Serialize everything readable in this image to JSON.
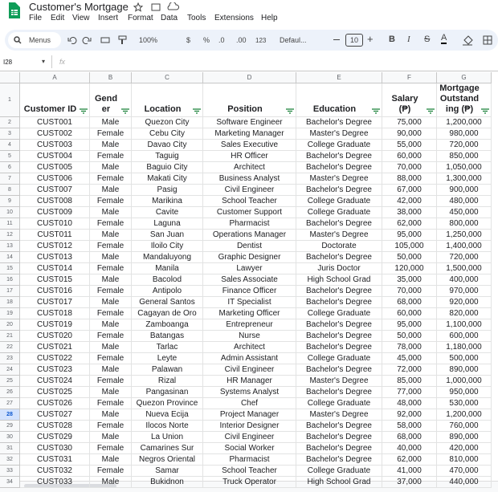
{
  "header": {
    "title": "Customer's Mortgage",
    "menus": [
      "File",
      "Edit",
      "View",
      "Insert",
      "Format",
      "Data",
      "Tools",
      "Extensions",
      "Help"
    ]
  },
  "toolbar": {
    "search": "Menus",
    "zoom": "100%",
    "currency": "$",
    "percent": "%",
    "decimal_less": ".0",
    "decimal_more": ".00",
    "number_format": "123",
    "font": "Defaul...",
    "font_size": "10",
    "bold": "B",
    "italic": "I",
    "text_color": "A"
  },
  "formula_bar": {
    "cell": "I28",
    "fx": "fx"
  },
  "table": {
    "column_letters": [
      "A",
      "B",
      "C",
      "D",
      "E",
      "F",
      "G"
    ],
    "row_numbers": [
      "1",
      "2",
      "3",
      "4",
      "5",
      "6",
      "7",
      "8",
      "9",
      "10",
      "11",
      "12",
      "13",
      "14",
      "15",
      "16",
      "17",
      "18",
      "19",
      "20",
      "21",
      "22",
      "23",
      "24",
      "25",
      "26",
      "27",
      "28",
      "29",
      "30",
      "31",
      "32",
      "33",
      "34"
    ],
    "selected_row": "28",
    "columns": [
      "Customer ID",
      "Gender",
      "Location",
      "Position",
      "Education",
      "Salary (₱)",
      "Mortgage Outstanding (₱)"
    ],
    "rows": [
      [
        "CUST001",
        "Male",
        "Quezon City",
        "Software Engineer",
        "Bachelor's Degree",
        "75,000",
        "1,200,000"
      ],
      [
        "CUST002",
        "Female",
        "Cebu City",
        "Marketing Manager",
        "Master's Degree",
        "90,000",
        "980,000"
      ],
      [
        "CUST003",
        "Male",
        "Davao City",
        "Sales Executive",
        "College Graduate",
        "55,000",
        "720,000"
      ],
      [
        "CUST004",
        "Female",
        "Taguig",
        "HR Officer",
        "Bachelor's Degree",
        "60,000",
        "850,000"
      ],
      [
        "CUST005",
        "Male",
        "Baguio City",
        "Architect",
        "Bachelor's Degree",
        "70,000",
        "1,050,000"
      ],
      [
        "CUST006",
        "Female",
        "Makati City",
        "Business Analyst",
        "Master's Degree",
        "88,000",
        "1,300,000"
      ],
      [
        "CUST007",
        "Male",
        "Pasig",
        "Civil Engineer",
        "Bachelor's Degree",
        "67,000",
        "900,000"
      ],
      [
        "CUST008",
        "Female",
        "Marikina",
        "School Teacher",
        "College Graduate",
        "42,000",
        "480,000"
      ],
      [
        "CUST009",
        "Male",
        "Cavite",
        "Customer Support",
        "College Graduate",
        "38,000",
        "450,000"
      ],
      [
        "CUST010",
        "Female",
        "Laguna",
        "Pharmacist",
        "Bachelor's Degree",
        "62,000",
        "800,000"
      ],
      [
        "CUST011",
        "Male",
        "San Juan",
        "Operations Manager",
        "Master's Degree",
        "95,000",
        "1,250,000"
      ],
      [
        "CUST012",
        "Female",
        "Iloilo City",
        "Dentist",
        "Doctorate",
        "105,000",
        "1,400,000"
      ],
      [
        "CUST013",
        "Male",
        "Mandaluyong",
        "Graphic Designer",
        "Bachelor's Degree",
        "50,000",
        "720,000"
      ],
      [
        "CUST014",
        "Female",
        "Manila",
        "Lawyer",
        "Juris Doctor",
        "120,000",
        "1,500,000"
      ],
      [
        "CUST015",
        "Male",
        "Bacolod",
        "Sales Associate",
        "High School Grad",
        "35,000",
        "400,000"
      ],
      [
        "CUST016",
        "Female",
        "Antipolo",
        "Finance Officer",
        "Bachelor's Degree",
        "70,000",
        "970,000"
      ],
      [
        "CUST017",
        "Male",
        "General Santos",
        "IT Specialist",
        "Bachelor's Degree",
        "68,000",
        "920,000"
      ],
      [
        "CUST018",
        "Female",
        "Cagayan de Oro",
        "Marketing Officer",
        "College Graduate",
        "60,000",
        "820,000"
      ],
      [
        "CUST019",
        "Male",
        "Zamboanga",
        "Entrepreneur",
        "Bachelor's Degree",
        "95,000",
        "1,100,000"
      ],
      [
        "CUST020",
        "Female",
        "Batangas",
        "Nurse",
        "Bachelor's Degree",
        "50,000",
        "600,000"
      ],
      [
        "CUST021",
        "Male",
        "Tarlac",
        "Architect",
        "Bachelor's Degree",
        "78,000",
        "1,180,000"
      ],
      [
        "CUST022",
        "Female",
        "Leyte",
        "Admin Assistant",
        "College Graduate",
        "45,000",
        "500,000"
      ],
      [
        "CUST023",
        "Male",
        "Palawan",
        "Civil Engineer",
        "Bachelor's Degree",
        "72,000",
        "890,000"
      ],
      [
        "CUST024",
        "Female",
        "Rizal",
        "HR Manager",
        "Master's Degree",
        "85,000",
        "1,000,000"
      ],
      [
        "CUST025",
        "Male",
        "Pangasinan",
        "Systems Analyst",
        "Bachelor's Degree",
        "77,000",
        "950,000"
      ],
      [
        "CUST026",
        "Female",
        "Quezon Province",
        "Chef",
        "College Graduate",
        "48,000",
        "530,000"
      ],
      [
        "CUST027",
        "Male",
        "Nueva Ecija",
        "Project Manager",
        "Master's Degree",
        "92,000",
        "1,200,000"
      ],
      [
        "CUST028",
        "Female",
        "Ilocos Norte",
        "Interior Designer",
        "Bachelor's Degree",
        "58,000",
        "760,000"
      ],
      [
        "CUST029",
        "Male",
        "La Union",
        "Civil Engineer",
        "Bachelor's Degree",
        "68,000",
        "890,000"
      ],
      [
        "CUST030",
        "Female",
        "Camarines Sur",
        "Social Worker",
        "Bachelor's Degree",
        "40,000",
        "420,000"
      ],
      [
        "CUST031",
        "Male",
        "Negros Oriental",
        "Pharmacist",
        "Bachelor's Degree",
        "62,000",
        "810,000"
      ],
      [
        "CUST032",
        "Female",
        "Samar",
        "School Teacher",
        "College Graduate",
        "41,000",
        "470,000"
      ],
      [
        "CUST033",
        "Male",
        "Bukidnon",
        "Truck Operator",
        "High School Grad",
        "37,000",
        "440,000"
      ]
    ]
  }
}
